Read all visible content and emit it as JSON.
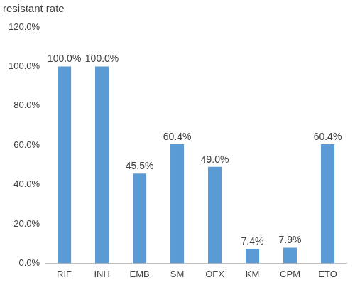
{
  "chart_data": {
    "type": "bar",
    "ylabel": "resistant rate",
    "categories": [
      "RIF",
      "INH",
      "EMB",
      "SM",
      "OFX",
      "KM",
      "CPM",
      "ETO"
    ],
    "values": [
      100,
      100,
      45.5,
      60.4,
      49.0,
      7.4,
      7.9,
      60.4
    ],
    "value_labels": [
      "100.0%",
      "100.0%",
      "45.5%",
      "60.4%",
      "49.0%",
      "7.4%",
      "7.9%",
      "60.4%"
    ],
    "color": "#5b9bd5",
    "ylim": [
      0,
      120
    ],
    "yticks": [
      {
        "value": 0,
        "label": "0.0%"
      },
      {
        "value": 20,
        "label": "20.0%"
      },
      {
        "value": 40,
        "label": "40.0%"
      },
      {
        "value": 60,
        "label": "60.0%"
      },
      {
        "value": 80,
        "label": "80.0%"
      },
      {
        "value": 100,
        "label": "100.0%"
      },
      {
        "value": 120,
        "label": "120.0%"
      }
    ],
    "grid": false,
    "data_labels": true
  }
}
